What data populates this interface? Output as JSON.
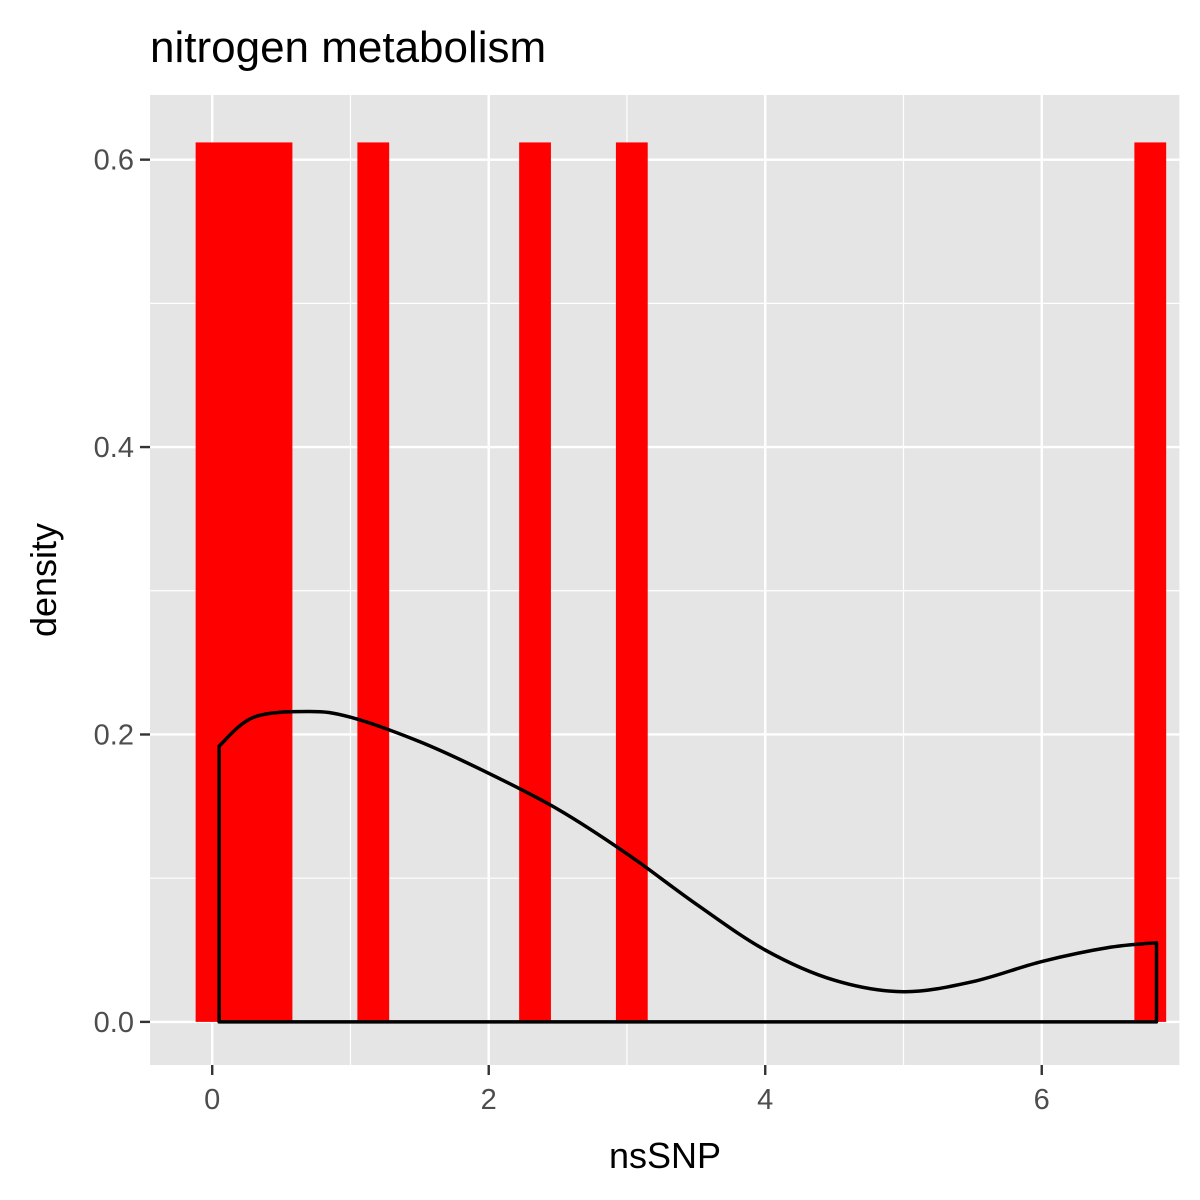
{
  "chart_data": {
    "type": "bar",
    "title": "nitrogen metabolism",
    "xlabel": "nsSNP",
    "ylabel": "density",
    "xlim": [
      -0.45,
      7.0
    ],
    "ylim": [
      -0.03,
      0.645
    ],
    "x_ticks": [
      0,
      2,
      4,
      6
    ],
    "x_tick_labels": [
      "0",
      "2",
      "4",
      "6"
    ],
    "y_ticks": [
      0.0,
      0.2,
      0.4,
      0.6
    ],
    "y_tick_labels": [
      "0.0",
      "0.2",
      "0.4",
      "0.6"
    ],
    "x_minor_gridlines": [
      1,
      3,
      5,
      7
    ],
    "y_minor_gridlines": [
      0.1,
      0.3,
      0.5
    ],
    "grid": true,
    "bar_color": "#ff0000",
    "panel_background": "#e5e5e5",
    "histogram_bars": [
      {
        "x_start": -0.12,
        "x_end": 0.58,
        "density": 0.612
      },
      {
        "x_start": 1.05,
        "x_end": 1.28,
        "density": 0.612
      },
      {
        "x_start": 2.22,
        "x_end": 2.45,
        "density": 0.612
      },
      {
        "x_start": 2.92,
        "x_end": 3.15,
        "density": 0.612
      },
      {
        "x_start": 6.67,
        "x_end": 6.9,
        "density": 0.612
      }
    ],
    "density_curve": {
      "color": "#000000",
      "x": [
        0.05,
        0.3,
        0.7,
        1.0,
        1.5,
        2.0,
        2.5,
        3.0,
        3.5,
        4.0,
        4.5,
        5.0,
        5.5,
        6.0,
        6.5,
        6.83
      ],
      "y": [
        0.192,
        0.212,
        0.216,
        0.212,
        0.195,
        0.173,
        0.148,
        0.117,
        0.082,
        0.05,
        0.029,
        0.021,
        0.028,
        0.042,
        0.052,
        0.055
      ]
    }
  }
}
